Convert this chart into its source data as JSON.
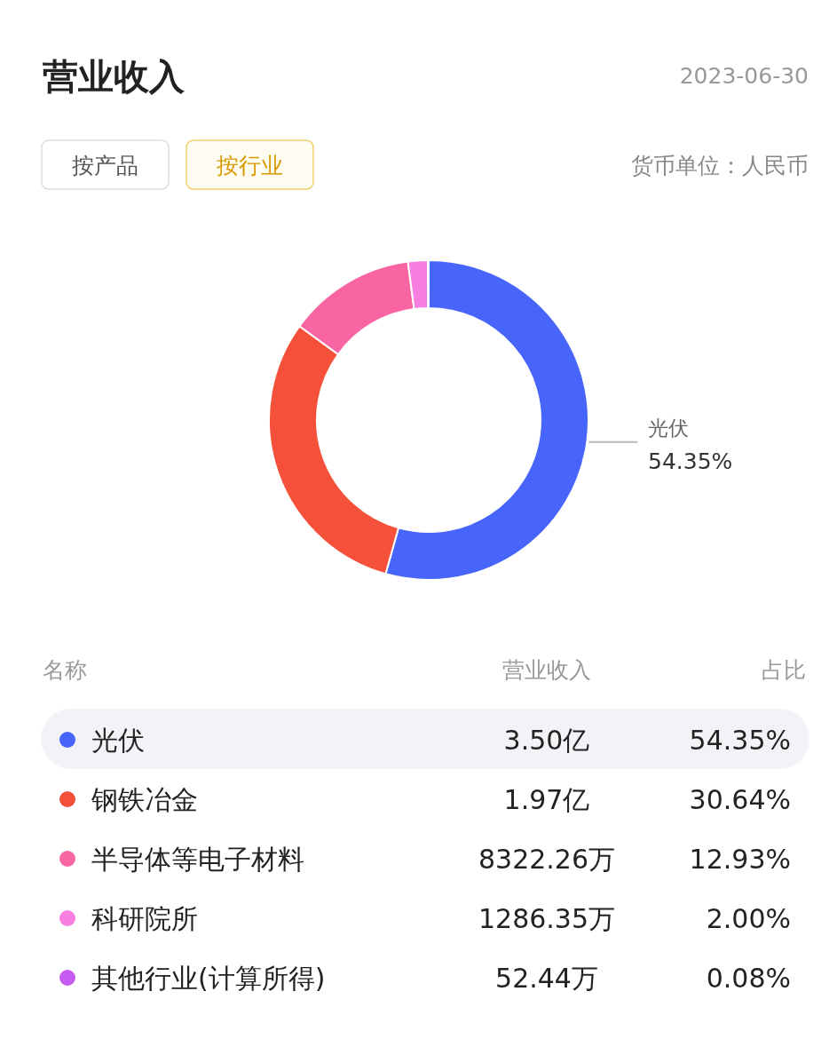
{
  "chart_data": {
    "type": "donut",
    "title": "营业收入",
    "subtitle": "2023-06-30",
    "annotations": [
      "按产品",
      "按行业",
      "货币单位：人民币",
      "名称",
      "营业收入",
      "占比",
      "3.50亿",
      "1.97亿",
      "8322.26万",
      "1286.35万",
      "52.44万"
    ],
    "categories": [
      "光伏",
      "钢铁冶金",
      "半导体等电子材料",
      "科研院所",
      "其他行业(计算所得)"
    ],
    "values": [
      54.35,
      30.64,
      12.93,
      2.0,
      0.08
    ],
    "value_labels": [
      "54.35%",
      "30.64%",
      "12.93%",
      "2.00%",
      "0.08%"
    ],
    "colors": [
      "#4764fb",
      "#f5503a",
      "#f965a3",
      "#f77fe0",
      "#c75cf2"
    ],
    "legend": "bottom"
  }
}
